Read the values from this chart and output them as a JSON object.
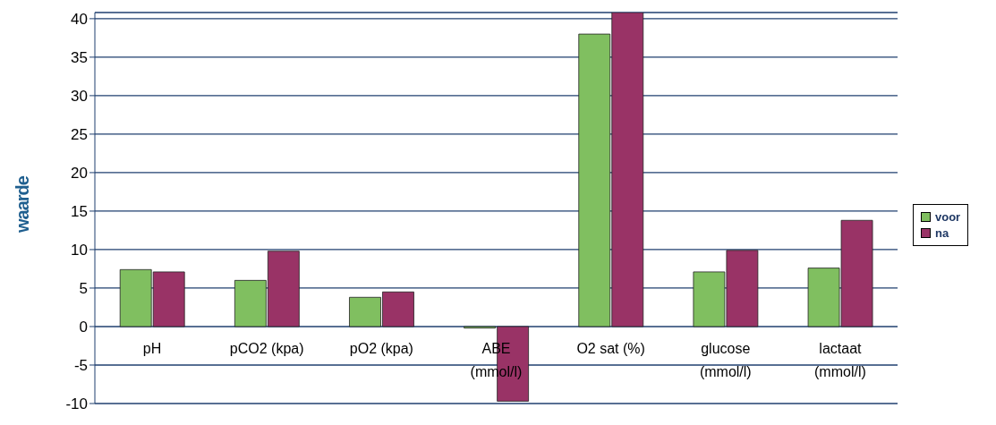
{
  "chart_data": {
    "type": "bar",
    "ylabel": "waarde",
    "categories": [
      "pH",
      "pCO2 (kpa)",
      "pO2 (kpa)",
      "ABE (mmol/l)",
      "O2 sat (%)",
      "glucose (mmol/l)",
      "lactaat (mmol/l)"
    ],
    "series": [
      {
        "name": "voor",
        "color": "#80bf60",
        "values": [
          7.4,
          6.0,
          3.8,
          -0.2,
          38.0,
          7.1,
          7.6
        ]
      },
      {
        "name": "na",
        "color": "#993366",
        "values": [
          7.1,
          9.8,
          4.5,
          -9.7,
          40.8,
          9.9,
          13.8
        ]
      }
    ],
    "ylim": [
      -10,
      40.8
    ],
    "yticks": [
      -10,
      -5,
      0,
      5,
      10,
      15,
      20,
      25,
      30,
      35,
      40
    ],
    "grid": "y",
    "legend": "right"
  }
}
